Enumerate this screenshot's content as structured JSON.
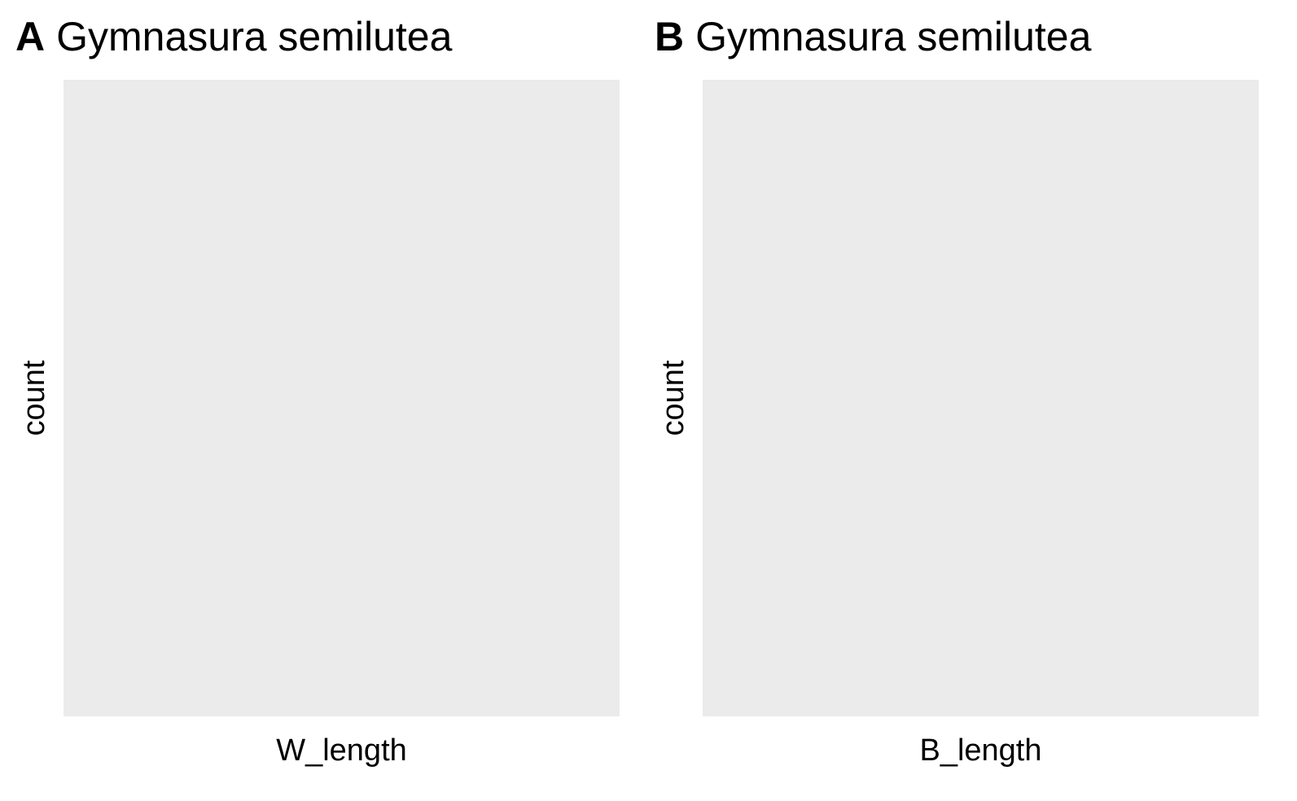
{
  "chart_data": [
    {
      "type": "bar",
      "tag": "A",
      "title": "Gymnasura semilutea",
      "xlabel": "W_length",
      "ylabel": "count",
      "categories": [],
      "values": [],
      "background": "#ebebeb",
      "grid": false
    },
    {
      "type": "bar",
      "tag": "B",
      "title": "Gymnasura semilutea",
      "xlabel": "B_length",
      "ylabel": "count",
      "categories": [],
      "values": [],
      "background": "#ebebeb",
      "grid": false
    }
  ]
}
